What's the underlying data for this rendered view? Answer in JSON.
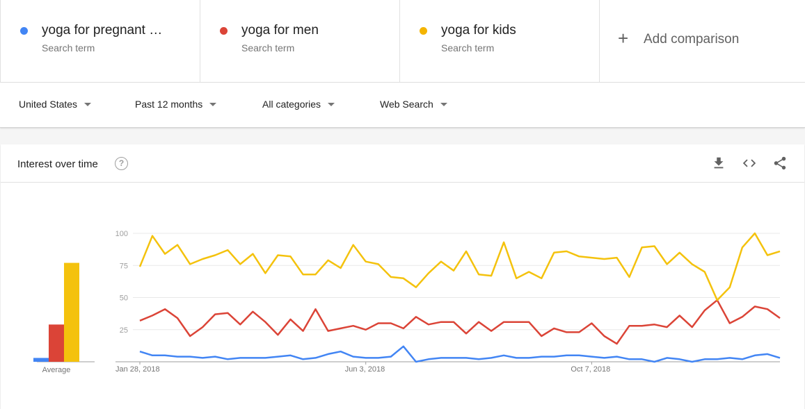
{
  "terms": [
    {
      "name": "yoga for pregnant …",
      "sub": "Search term",
      "color": "#4285f4"
    },
    {
      "name": "yoga for men",
      "sub": "Search term",
      "color": "#db4437"
    },
    {
      "name": "yoga for kids",
      "sub": "Search term",
      "color": "#f4b400"
    }
  ],
  "add_comparison": {
    "plus": "+",
    "label": "Add comparison"
  },
  "filters": {
    "region": "United States",
    "period": "Past 12 months",
    "category": "All categories",
    "property": "Web Search"
  },
  "card": {
    "title": "Interest over time",
    "help": "?",
    "icons": [
      "download-icon",
      "embed-code-icon",
      "share-icon"
    ]
  },
  "chart_data": {
    "type": "line",
    "y_ticks": [
      "100",
      "75",
      "50",
      "25"
    ],
    "ylim": [
      0,
      100
    ],
    "x_tick_labels": [
      "Jan 28, 2018",
      "Jun 3, 2018",
      "Oct 7, 2018"
    ],
    "x_tick_indices": [
      0,
      18,
      36
    ],
    "average_label": "Average",
    "averages": [
      3,
      29,
      77
    ],
    "series": [
      {
        "name": "yoga for pregnant …",
        "color": "#4285f4",
        "values": [
          8,
          5,
          5,
          4,
          4,
          3,
          4,
          2,
          3,
          3,
          3,
          4,
          5,
          2,
          3,
          6,
          8,
          4,
          3,
          3,
          4,
          12,
          0,
          2,
          3,
          3,
          3,
          2,
          3,
          5,
          3,
          3,
          4,
          4,
          5,
          5,
          4,
          3,
          4,
          2,
          2,
          0,
          3,
          2,
          0,
          2,
          2,
          3,
          2,
          5,
          6,
          3
        ]
      },
      {
        "name": "yoga for men",
        "color": "#db4437",
        "values": [
          32,
          36,
          41,
          34,
          20,
          27,
          37,
          38,
          29,
          39,
          31,
          21,
          33,
          24,
          41,
          24,
          26,
          28,
          25,
          30,
          30,
          26,
          35,
          29,
          31,
          31,
          22,
          31,
          24,
          31,
          31,
          31,
          20,
          26,
          23,
          23,
          30,
          20,
          14,
          28,
          28,
          29,
          27,
          36,
          27,
          40,
          48,
          30,
          35,
          43,
          41,
          34
        ]
      },
      {
        "name": "yoga for kids",
        "color": "#f4c20d",
        "values": [
          74,
          98,
          84,
          91,
          76,
          80,
          83,
          87,
          76,
          84,
          69,
          83,
          82,
          68,
          68,
          79,
          73,
          91,
          78,
          76,
          66,
          65,
          58,
          69,
          78,
          71,
          86,
          68,
          67,
          93,
          65,
          70,
          65,
          85,
          86,
          82,
          81,
          80,
          81,
          66,
          89,
          90,
          76,
          85,
          76,
          70,
          48,
          58,
          89,
          100,
          83,
          86
        ]
      }
    ]
  }
}
